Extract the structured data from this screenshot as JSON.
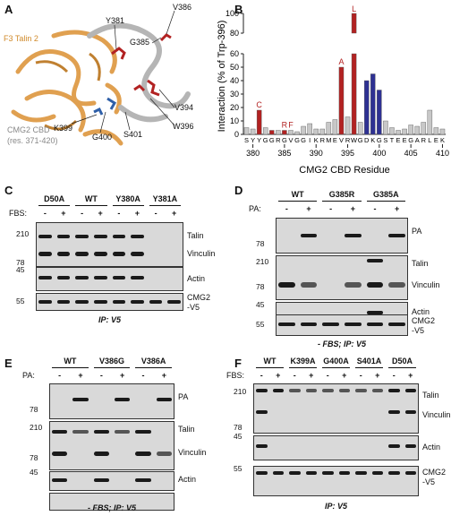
{
  "panels": {
    "A": {
      "letter": "A",
      "talin_label": "F3 Talin 2",
      "cmg2_label": "CMG2 CBD",
      "cmg2_sub": "(res. 371-420)",
      "residues": [
        "Y381",
        "G385",
        "V386",
        "V394",
        "W396",
        "S401",
        "G400",
        "K399"
      ]
    },
    "B": {
      "letter": "B",
      "ylabel": "Interaction (% of Trp-396)",
      "xlabel": "CMG2 CBD Residue",
      "highlight_letters": [
        "C",
        "R",
        "F",
        "A",
        "L"
      ]
    },
    "C": {
      "letter": "C",
      "groups": [
        "D50A",
        "WT",
        "Y380A",
        "Y381A"
      ],
      "row_label": "FBS:",
      "signs": [
        "-",
        "+",
        "-",
        "+",
        "-",
        "+",
        "-",
        "+"
      ],
      "blots": [
        "Talin",
        "Vinculin",
        "Actin",
        "CMG2\n-V5"
      ],
      "mw": [
        "210",
        "78",
        "45",
        "55"
      ],
      "footer": "IP: V5"
    },
    "D": {
      "letter": "D",
      "groups": [
        "WT",
        "G385R",
        "G385A"
      ],
      "row_label": "PA:",
      "signs": [
        "-",
        "+",
        "-",
        "+",
        "-",
        "+"
      ],
      "blots": [
        "PA",
        "Talin",
        "Vinculin",
        "Actin",
        "CMG2\n-V5"
      ],
      "mw": [
        "78",
        "210",
        "78",
        "45",
        "55"
      ],
      "footer": "- FBS; IP: V5"
    },
    "E": {
      "letter": "E",
      "groups": [
        "WT",
        "V386G",
        "V386A"
      ],
      "row_label": "PA:",
      "signs": [
        "-",
        "+",
        "-",
        "+",
        "-",
        "+"
      ],
      "blots": [
        "PA",
        "Talin",
        "Vinculin",
        "Actin",
        "CMG2\n-V5"
      ],
      "mw": [
        "78",
        "210",
        "78",
        "45",
        "55"
      ],
      "footer": "- FBS; IP: V5"
    },
    "F": {
      "letter": "F",
      "groups": [
        "WT",
        "K399A",
        "G400A",
        "S401A",
        "D50A"
      ],
      "row_label": "FBS:",
      "signs": [
        "-",
        "+",
        "-",
        "+",
        "-",
        "+",
        "-",
        "+",
        "-",
        "+"
      ],
      "blots": [
        "Talin",
        "Vinculin",
        "Actin",
        "CMG2\n-V5"
      ],
      "mw": [
        "210",
        "78",
        "45",
        "55"
      ],
      "footer": "IP: V5"
    }
  },
  "chart_data": {
    "type": "bar",
    "xlabel": "CMG2 CBD Residue",
    "ylabel": "Interaction (% of Trp-396)",
    "ylim": [
      0,
      100
    ],
    "y_axis_break": [
      60,
      80
    ],
    "yticks": [
      0,
      10,
      20,
      30,
      40,
      50,
      60,
      80,
      100
    ],
    "xticks": [
      380,
      385,
      390,
      395,
      400,
      405,
      410
    ],
    "categories": [
      "S",
      "Y",
      "Y",
      "G",
      "G",
      "R",
      "G",
      "V",
      "G",
      "G",
      "I",
      "K",
      "R",
      "M",
      "E",
      "V",
      "R",
      "W",
      "G",
      "D",
      "K",
      "G",
      "S",
      "T",
      "E",
      "E",
      "G",
      "A",
      "R",
      "L",
      "E",
      "K"
    ],
    "residue_numbers": [
      379,
      380,
      381,
      382,
      383,
      384,
      385,
      386,
      387,
      388,
      389,
      390,
      391,
      392,
      393,
      394,
      395,
      396,
      397,
      398,
      399,
      400,
      401,
      402,
      403,
      404,
      405,
      406,
      407,
      408,
      409,
      410
    ],
    "values": [
      5,
      4,
      18,
      5,
      3,
      3,
      3,
      3,
      2,
      6,
      8,
      4,
      4,
      9,
      11,
      50,
      13,
      100,
      9,
      40,
      45,
      33,
      10,
      5,
      3,
      4,
      7,
      6,
      9,
      18,
      5,
      4
    ],
    "colors": [
      "#c8c8c8",
      "#c8c8c8",
      "#b22222",
      "#c8c8c8",
      "#b22222",
      "#c8c8c8",
      "#b22222",
      "#c8c8c8",
      "#c8c8c8",
      "#c8c8c8",
      "#c8c8c8",
      "#c8c8c8",
      "#c8c8c8",
      "#c8c8c8",
      "#c8c8c8",
      "#b22222",
      "#c8c8c8",
      "#b22222",
      "#c8c8c8",
      "#2e3192",
      "#2e3192",
      "#2e3192",
      "#c8c8c8",
      "#c8c8c8",
      "#c8c8c8",
      "#c8c8c8",
      "#c8c8c8",
      "#c8c8c8",
      "#c8c8c8",
      "#c8c8c8",
      "#c8c8c8",
      "#c8c8c8"
    ],
    "mutation_labels": [
      {
        "residue": 381,
        "label": "C"
      },
      {
        "residue": 385,
        "label": "R"
      },
      {
        "residue": 386,
        "label": "F"
      },
      {
        "residue": 394,
        "label": "A"
      },
      {
        "residue": 396,
        "label": "L"
      }
    ]
  }
}
